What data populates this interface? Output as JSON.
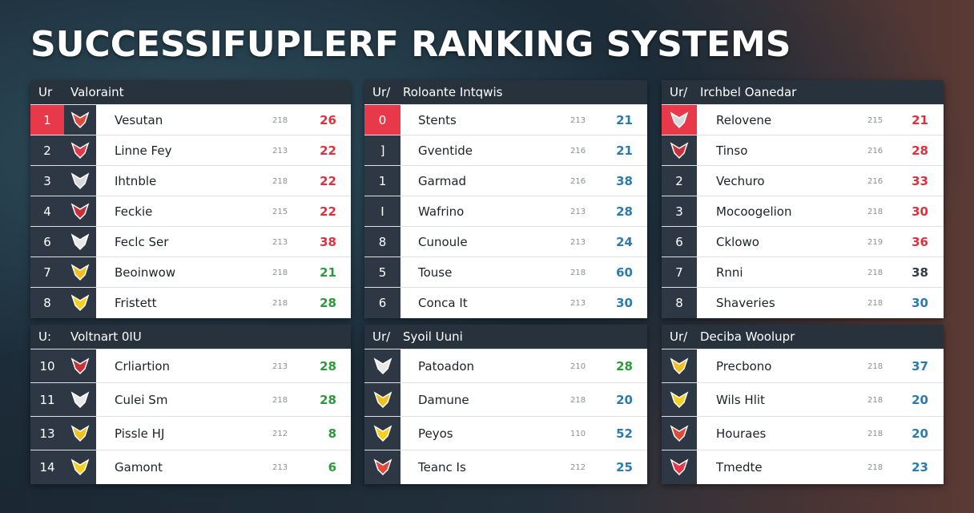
{
  "header": {
    "title": "SUCCESSIFUPLERF RANKING SYSTEMS"
  },
  "panels": [
    {
      "prefix": "Ur",
      "name": "Valoraint",
      "rows": [
        {
          "rank": "1",
          "name": "Vesutan",
          "code": "218",
          "score": "26",
          "color": "#e0303c",
          "highlight": true
        },
        {
          "rank": "2",
          "name": "Linne Fey",
          "code": "213",
          "score": "22",
          "color": "#e0303c"
        },
        {
          "rank": "3",
          "name": "Ihtnble",
          "code": "218",
          "score": "22",
          "color": "#e0303c"
        },
        {
          "rank": "4",
          "name": "Feckie",
          "code": "215",
          "score": "22",
          "color": "#e0303c"
        },
        {
          "rank": "6",
          "name": "Feclc Ser",
          "code": "213",
          "score": "38",
          "color": "#e0303c"
        },
        {
          "rank": "7",
          "name": "Beoinwow",
          "code": "218",
          "score": "21",
          "color": "#2a9a3a"
        },
        {
          "rank": "8",
          "name": "Fristett",
          "code": "218",
          "score": "28",
          "color": "#2a9a3a"
        }
      ]
    },
    {
      "prefix": "Ur/",
      "name": "Roloante Intqwis",
      "rows": [
        {
          "rank": "0",
          "name": "Stents",
          "code": "213",
          "score": "21",
          "color": "#2a7bb0",
          "highlight": true
        },
        {
          "rank": "]",
          "name": "Gventide",
          "code": "216",
          "score": "21",
          "color": "#2a7bb0"
        },
        {
          "rank": "1",
          "name": "Garmad",
          "code": "216",
          "score": "38",
          "color": "#2a7bb0"
        },
        {
          "rank": "I",
          "name": "Wafrino",
          "code": "213",
          "score": "28",
          "color": "#2a7bb0"
        },
        {
          "rank": "8",
          "name": "Cunoule",
          "code": "213",
          "score": "24",
          "color": "#2a7bb0"
        },
        {
          "rank": "5",
          "name": "Touse",
          "code": "218",
          "score": "60",
          "color": "#2a7bb0"
        },
        {
          "rank": "6",
          "name": "Conca It",
          "code": "213",
          "score": "30",
          "color": "#2a7bb0"
        }
      ]
    },
    {
      "prefix": "Ur/",
      "name": "Irchbel Oanedar",
      "rows": [
        {
          "name": "Relovene",
          "code": "215",
          "score": "21",
          "color": "#e0303c",
          "highlight": true
        },
        {
          "name": "Tinso",
          "code": "216",
          "score": "28",
          "color": "#e0303c"
        },
        {
          "rank": "2",
          "name": "Vechuro",
          "code": "216",
          "score": "33",
          "color": "#e0303c"
        },
        {
          "rank": "3",
          "name": "Mocoogelion",
          "code": "218",
          "score": "30",
          "color": "#e0303c"
        },
        {
          "rank": "6",
          "name": "Cklowo",
          "code": "219",
          "score": "36",
          "color": "#e0303c"
        },
        {
          "rank": "7",
          "name": "Rnni",
          "code": "218",
          "score": "38",
          "color": "#333b45"
        },
        {
          "rank": "8",
          "name": "Shaveries",
          "code": "218",
          "score": "30",
          "color": "#2a7bb0"
        }
      ]
    },
    {
      "prefix": "U:",
      "name": "Voltnart 0IU",
      "rows": [
        {
          "rank": "10",
          "name": "Crliartion",
          "code": "213",
          "score": "28",
          "color": "#2a9a3a"
        },
        {
          "rank": "11",
          "name": "Culei Sm",
          "code": "218",
          "score": "28",
          "color": "#2a9a3a"
        },
        {
          "rank": "13",
          "name": "Pissle HJ",
          "code": "212",
          "score": "8",
          "color": "#2a9a3a"
        },
        {
          "rank": "14",
          "name": "Gamont",
          "code": "213",
          "score": "6",
          "color": "#2a9a3a"
        }
      ]
    },
    {
      "prefix": "Ur/",
      "name": "Syoil Uuni",
      "rows": [
        {
          "name": "Patoadon",
          "code": "210",
          "score": "28",
          "color": "#2a9a3a"
        },
        {
          "name": "Damune",
          "code": "218",
          "score": "20",
          "color": "#2a7bb0"
        },
        {
          "name": "Peyos",
          "code": "110",
          "score": "52",
          "color": "#2a7bb0"
        },
        {
          "name": "Teanc Is",
          "code": "212",
          "score": "25",
          "color": "#2a7bb0"
        }
      ]
    },
    {
      "prefix": "Ur/",
      "name": "Deciba Woolupr",
      "rows": [
        {
          "name": "Precbono",
          "code": "218",
          "score": "37",
          "color": "#2a7bb0"
        },
        {
          "name": "Wils Hlit",
          "code": "218",
          "score": "20",
          "color": "#2a7bb0"
        },
        {
          "name": "Houraes",
          "code": "218",
          "score": "20",
          "color": "#2a7bb0"
        },
        {
          "name": "Tmedte",
          "code": "218",
          "score": "23",
          "color": "#2a7bb0"
        }
      ]
    }
  ]
}
